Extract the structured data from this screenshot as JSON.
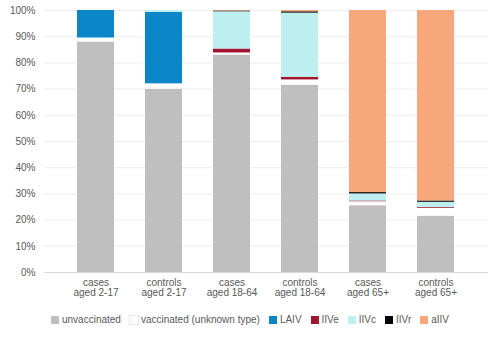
{
  "chart_data": {
    "type": "bar",
    "stacked": true,
    "grid": true,
    "legend": "bottom",
    "categories": [
      "cases\naged 2-17",
      "controls\naged 2-17",
      "cases\naged 18-64",
      "controls\naged 18-64",
      "cases\naged 65+",
      "controls\naged 65+"
    ],
    "ylim": [
      0,
      100
    ],
    "yticks": [
      {
        "value": 0,
        "label": "0%"
      },
      {
        "value": 10,
        "label": "10%"
      },
      {
        "value": 20,
        "label": "20%"
      },
      {
        "value": 30,
        "label": "30%"
      },
      {
        "value": 40,
        "label": "40%"
      },
      {
        "value": 50,
        "label": "50%"
      },
      {
        "value": 60,
        "label": "60%"
      },
      {
        "value": 70,
        "label": "70%"
      },
      {
        "value": 80,
        "label": "80%"
      },
      {
        "value": 90,
        "label": "90%"
      },
      {
        "value": 100,
        "label": "100%"
      }
    ],
    "series": [
      {
        "name": "unvaccinated",
        "color": "#bfbfbf",
        "values": [
          88,
          70,
          83,
          71.5,
          25.5,
          21.5
        ]
      },
      {
        "name": "vaccinated (unknown type)",
        "color": "#ffffff",
        "values": [
          1.5,
          2,
          0.8,
          2,
          1.5,
          3
        ]
      },
      {
        "name": "LAIV",
        "color": "#0b87c9",
        "values": [
          10.5,
          27.3,
          0,
          0,
          0,
          0
        ]
      },
      {
        "name": "IIVe",
        "color": "#a3152f",
        "values": [
          0,
          0,
          1.5,
          1,
          0.3,
          0.3
        ]
      },
      {
        "name": "IIVc",
        "color": "#bdeef0",
        "values": [
          0,
          0.7,
          14.2,
          24.5,
          2.7,
          2
        ]
      },
      {
        "name": "IIVr",
        "color": "#000000",
        "values": [
          0,
          0,
          0.3,
          0.5,
          0.5,
          0.5
        ]
      },
      {
        "name": "aIIV",
        "color": "#f8a77c",
        "values": [
          0,
          0,
          0.2,
          0.5,
          69.5,
          72.7
        ]
      }
    ]
  }
}
